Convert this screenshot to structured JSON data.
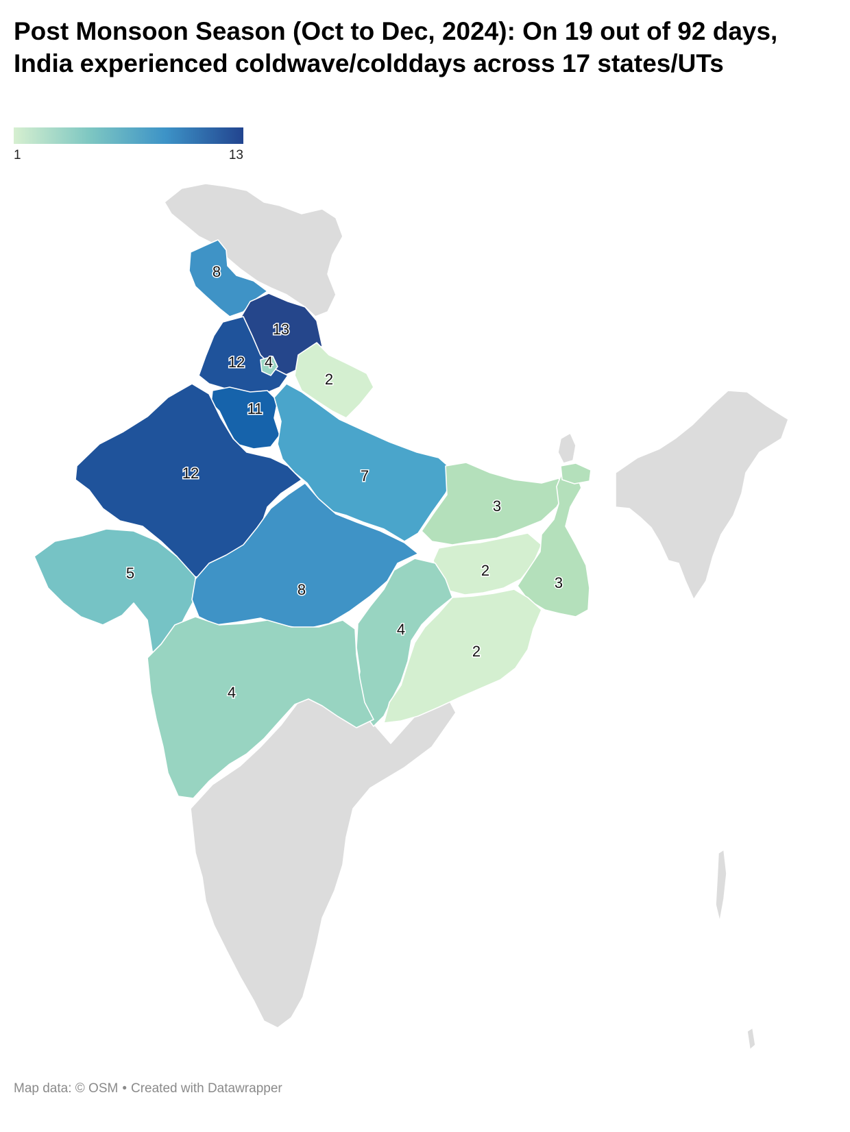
{
  "title": "Post Monsoon Season (Oct to Dec, 2024): On 19 out of 92 days, India experienced coldwave/colddays across 17 states/UTs",
  "legend": {
    "min_label": "1",
    "max_label": "13",
    "min": 1,
    "max": 13,
    "colors": [
      "#d6efd0",
      "#7ec7c2",
      "#3d93c7",
      "#22448f"
    ]
  },
  "nodata_color": "#dcdcdc",
  "regions": [
    {
      "id": "himachal-pradesh",
      "value": 8,
      "label": "8",
      "color": "#3f93c6"
    },
    {
      "id": "punjab",
      "value": 13,
      "label": "13",
      "color": "#25468b"
    },
    {
      "id": "haryana",
      "value": 12,
      "label": "12",
      "color": "#1f539b"
    },
    {
      "id": "chandigarh",
      "value": 4,
      "label": "4",
      "color": "#9cd6c4"
    },
    {
      "id": "uttarakhand",
      "value": 2,
      "label": "2",
      "color": "#d4efd0"
    },
    {
      "id": "delhi",
      "value": 11,
      "label": "11",
      "color": "#1663ab"
    },
    {
      "id": "rajasthan",
      "value": 12,
      "label": "12",
      "color": "#1f539b"
    },
    {
      "id": "uttar-pradesh",
      "value": 7,
      "label": "7",
      "color": "#4aa5cb"
    },
    {
      "id": "bihar",
      "value": 3,
      "label": "3",
      "color": "#b4e0bb"
    },
    {
      "id": "gujarat",
      "value": 5,
      "label": "5",
      "color": "#76c3c5"
    },
    {
      "id": "madhya-pradesh",
      "value": 8,
      "label": "8",
      "color": "#3f93c6"
    },
    {
      "id": "jharkhand",
      "value": 2,
      "label": "2",
      "color": "#d4efd0"
    },
    {
      "id": "west-bengal",
      "value": 3,
      "label": "3",
      "color": "#b4e0bb"
    },
    {
      "id": "chhattisgarh",
      "value": 4,
      "label": "4",
      "color": "#98d4c1"
    },
    {
      "id": "odisha",
      "value": 2,
      "label": "2",
      "color": "#d4efd0"
    },
    {
      "id": "maharashtra",
      "value": 4,
      "label": "4",
      "color": "#98d4c1"
    },
    {
      "id": "sikkim",
      "value": 3,
      "label": "",
      "color": "#b4e0bb"
    }
  ],
  "footer": {
    "map_credit": "Map data: © OSM",
    "made_with": "Created with Datawrapper"
  }
}
